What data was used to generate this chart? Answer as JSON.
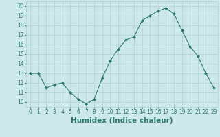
{
  "x": [
    0,
    1,
    2,
    3,
    4,
    5,
    6,
    7,
    8,
    9,
    10,
    11,
    12,
    13,
    14,
    15,
    16,
    17,
    18,
    19,
    20,
    21,
    22,
    23
  ],
  "y": [
    13,
    13,
    11.5,
    11.8,
    12,
    11,
    10.3,
    9.8,
    10.3,
    12.5,
    14.3,
    15.5,
    16.5,
    16.8,
    18.5,
    19,
    19.5,
    19.8,
    19.2,
    17.5,
    15.8,
    14.8,
    13,
    11.5
  ],
  "line_color": "#2d7a6b",
  "marker": "D",
  "marker_size": 2,
  "bg_color": "#cce8e8",
  "grid_color": "#b0d0d0",
  "xlabel": "Humidex (Indice chaleur)",
  "ylim": [
    9.5,
    20.5
  ],
  "xlim": [
    -0.5,
    23.5
  ],
  "yticks": [
    10,
    11,
    12,
    13,
    14,
    15,
    16,
    17,
    18,
    19,
    20
  ],
  "xticks": [
    0,
    1,
    2,
    3,
    4,
    5,
    6,
    7,
    8,
    9,
    10,
    11,
    12,
    13,
    14,
    15,
    16,
    17,
    18,
    19,
    20,
    21,
    22,
    23
  ],
  "tick_label_fontsize": 5.5,
  "xlabel_fontsize": 7.5,
  "tick_color": "#2d7a6b",
  "label_color": "#2d7a6b"
}
